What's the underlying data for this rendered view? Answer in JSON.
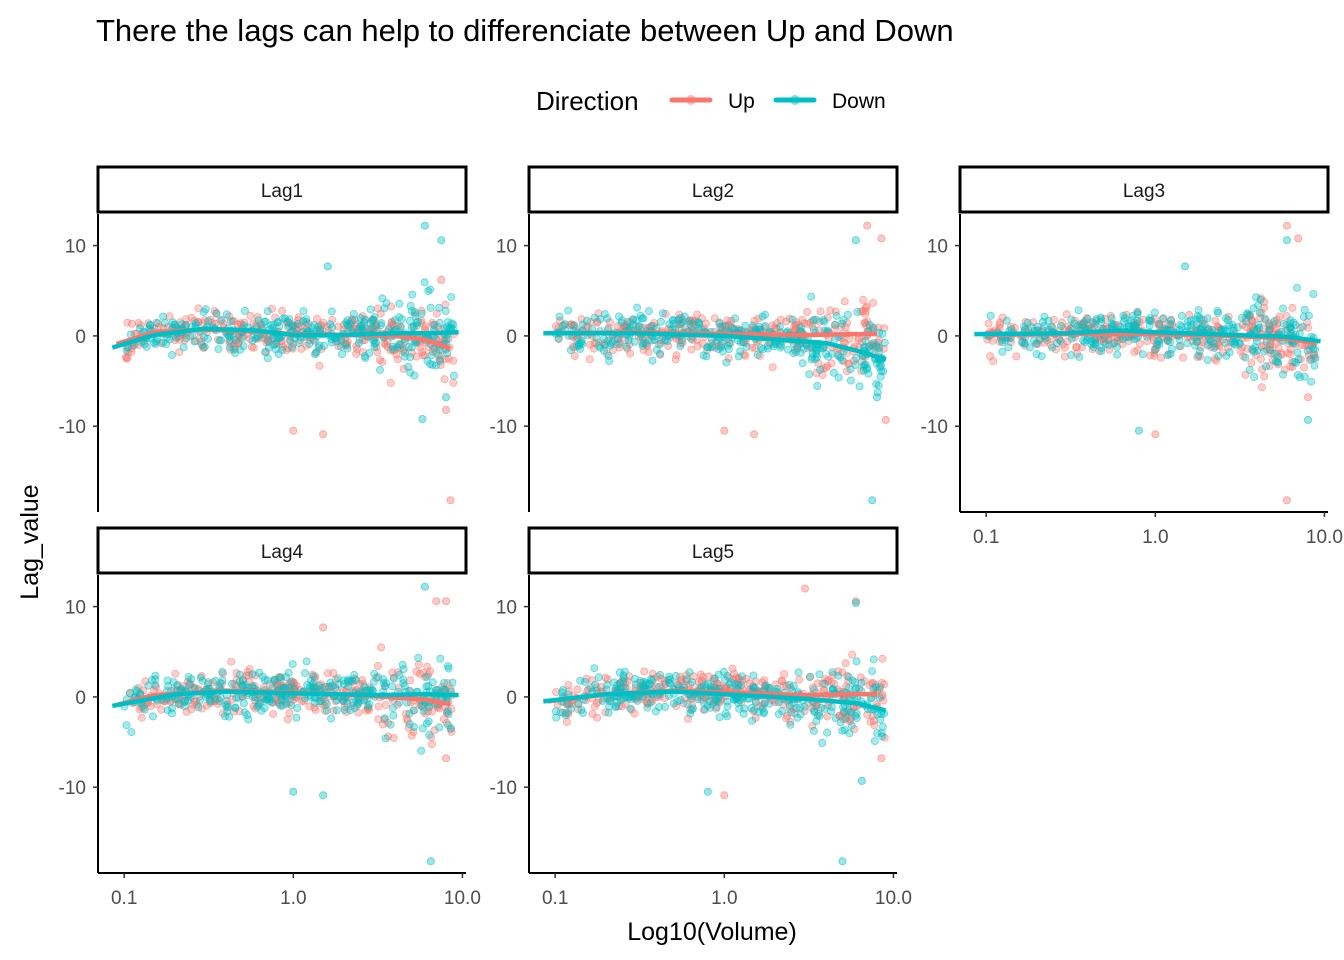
{
  "chart_data": {
    "type": "scatter",
    "title": "There the lags can help to differenciate between Up and Down",
    "xlabel": "Log10(Volume)",
    "ylabel": "Lag_value",
    "x_scale": "log10",
    "xlim": [
      0.07,
      10.5
    ],
    "ylim": [
      -19.5,
      13.5
    ],
    "x_ticks": [
      0.1,
      1.0,
      10.0
    ],
    "x_tick_labels": [
      "0.1",
      "1.0",
      "10.0"
    ],
    "y_ticks": [
      10,
      0,
      -10
    ],
    "y_tick_labels": [
      "10",
      "0",
      "-10"
    ],
    "legend": {
      "title": "Direction",
      "position": "top",
      "entries": [
        "Up",
        "Down"
      ]
    },
    "colors": {
      "Up": "#F8766D",
      "Down": "#00BFC4"
    },
    "grid": false,
    "facets": [
      {
        "label": "Lag1",
        "smooth": {
          "Up": [
            [
              0.09,
              -0.9
            ],
            [
              0.15,
              0.4
            ],
            [
              0.3,
              0.7
            ],
            [
              0.6,
              0.5
            ],
            [
              1.0,
              0.2
            ],
            [
              2.0,
              0.1
            ],
            [
              4.0,
              0.0
            ],
            [
              6.0,
              -0.4
            ],
            [
              8.5,
              -1.4
            ]
          ],
          "Down": [
            [
              0.085,
              -1.3
            ],
            [
              0.15,
              0.1
            ],
            [
              0.3,
              0.8
            ],
            [
              0.6,
              0.6
            ],
            [
              1.0,
              0.1
            ],
            [
              2.0,
              0.1
            ],
            [
              4.0,
              0.3
            ],
            [
              6.0,
              0.3
            ],
            [
              9.5,
              0.4
            ]
          ]
        },
        "highlights": {
          "Up": [
            [
              1.0,
              -10.5
            ],
            [
              1.5,
              -10.9
            ],
            [
              8.5,
              -18.2
            ],
            [
              8.0,
              -8.2
            ],
            [
              7.5,
              6.2
            ]
          ],
          "Down": [
            [
              6.0,
              12.2
            ],
            [
              7.5,
              10.6
            ],
            [
              5.8,
              -9.2
            ],
            [
              8.0,
              -6.8
            ],
            [
              1.6,
              7.7
            ]
          ]
        }
      },
      {
        "label": "Lag2",
        "smooth": {
          "Up": [
            [
              0.1,
              0.3
            ],
            [
              0.3,
              0.4
            ],
            [
              1.0,
              0.2
            ],
            [
              3.0,
              0.1
            ],
            [
              6.0,
              0.2
            ],
            [
              8.0,
              0.2
            ]
          ],
          "Down": [
            [
              0.085,
              0.3
            ],
            [
              0.3,
              0.3
            ],
            [
              1.0,
              0.0
            ],
            [
              2.0,
              -0.4
            ],
            [
              4.0,
              -0.8
            ],
            [
              6.0,
              -1.6
            ],
            [
              9.0,
              -2.6
            ]
          ]
        },
        "highlights": {
          "Up": [
            [
              1.0,
              -10.5
            ],
            [
              1.5,
              -10.9
            ],
            [
              7.0,
              12.2
            ],
            [
              8.5,
              10.8
            ],
            [
              9.0,
              -9.3
            ]
          ],
          "Down": [
            [
              6.0,
              10.6
            ],
            [
              7.5,
              -18.2
            ],
            [
              8.0,
              -6.8
            ]
          ]
        }
      },
      {
        "label": "Lag3",
        "smooth": {
          "Up": [
            [
              0.1,
              0.1
            ],
            [
              0.3,
              0.2
            ],
            [
              1.0,
              0.2
            ],
            [
              3.0,
              0.0
            ],
            [
              6.0,
              -0.3
            ],
            [
              9.0,
              -0.8
            ]
          ],
          "Down": [
            [
              0.085,
              0.2
            ],
            [
              0.3,
              0.3
            ],
            [
              0.6,
              0.6
            ],
            [
              1.0,
              0.4
            ],
            [
              3.0,
              0.1
            ],
            [
              6.0,
              -0.1
            ],
            [
              9.5,
              -0.6
            ]
          ]
        },
        "highlights": {
          "Up": [
            [
              1.0,
              -10.9
            ],
            [
              6.0,
              12.2
            ],
            [
              7.0,
              10.8
            ],
            [
              6.0,
              -18.2
            ],
            [
              8.0,
              -6.8
            ]
          ],
          "Down": [
            [
              0.8,
              -10.5
            ],
            [
              6.0,
              10.6
            ],
            [
              8.0,
              -9.3
            ],
            [
              1.5,
              7.7
            ]
          ]
        }
      },
      {
        "label": "Lag4",
        "smooth": {
          "Up": [
            [
              0.09,
              -0.9
            ],
            [
              0.15,
              0.2
            ],
            [
              0.4,
              0.7
            ],
            [
              1.0,
              0.5
            ],
            [
              3.0,
              0.1
            ],
            [
              6.0,
              -0.3
            ],
            [
              8.5,
              -0.8
            ]
          ],
          "Down": [
            [
              0.085,
              -1.0
            ],
            [
              0.2,
              0.3
            ],
            [
              0.4,
              0.6
            ],
            [
              1.0,
              0.4
            ],
            [
              3.0,
              0.2
            ],
            [
              6.0,
              0.3
            ],
            [
              9.5,
              0.2
            ]
          ]
        },
        "highlights": {
          "Up": [
            [
              1.5,
              7.7
            ],
            [
              7.0,
              10.6
            ],
            [
              8.0,
              10.6
            ],
            [
              8.0,
              -6.8
            ]
          ],
          "Down": [
            [
              1.0,
              -10.5
            ],
            [
              1.5,
              -10.9
            ],
            [
              6.0,
              12.2
            ],
            [
              6.5,
              -18.2
            ]
          ]
        }
      },
      {
        "label": "Lag5",
        "smooth": {
          "Up": [
            [
              0.09,
              -0.5
            ],
            [
              0.2,
              0.3
            ],
            [
              0.5,
              0.7
            ],
            [
              1.0,
              0.5
            ],
            [
              3.0,
              0.2
            ],
            [
              6.0,
              0.3
            ],
            [
              8.0,
              0.3
            ]
          ],
          "Down": [
            [
              0.085,
              -0.5
            ],
            [
              0.2,
              0.3
            ],
            [
              0.5,
              0.6
            ],
            [
              1.0,
              0.3
            ],
            [
              3.0,
              -0.2
            ],
            [
              6.0,
              -0.7
            ],
            [
              9.0,
              -1.5
            ]
          ]
        },
        "highlights": {
          "Up": [
            [
              1.0,
              -10.9
            ],
            [
              3.0,
              12.0
            ],
            [
              6.0,
              10.6
            ],
            [
              8.5,
              -6.8
            ]
          ],
          "Down": [
            [
              0.8,
              -10.5
            ],
            [
              6.0,
              10.4
            ],
            [
              5.0,
              -18.2
            ],
            [
              6.5,
              -9.3
            ]
          ]
        }
      }
    ]
  }
}
